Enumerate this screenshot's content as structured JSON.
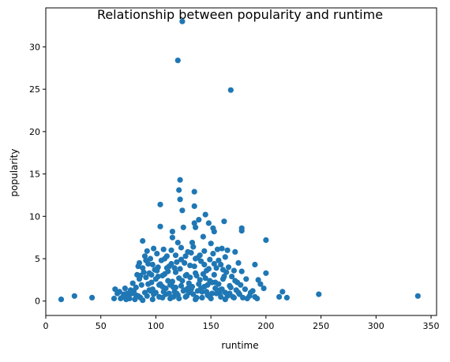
{
  "chart_data": {
    "type": "scatter",
    "title": "Relationship between popularity and runtime",
    "xlabel": "runtime",
    "ylabel": "popularity",
    "xlim": [
      0,
      355
    ],
    "ylim": [
      -1.7,
      34.6
    ],
    "xticks": [
      0,
      50,
      100,
      150,
      200,
      250,
      300,
      350
    ],
    "yticks": [
      0,
      5,
      10,
      15,
      20,
      25,
      30
    ],
    "grid": false,
    "legend": "none",
    "color": "#1f77b4",
    "series": [
      {
        "points": [
          [
            124,
            33.0
          ],
          [
            120,
            28.4
          ],
          [
            168,
            24.9
          ],
          [
            122,
            14.3
          ],
          [
            135,
            12.9
          ],
          [
            121,
            13.1
          ],
          [
            122,
            12.0
          ],
          [
            135,
            11.2
          ],
          [
            104,
            11.4
          ],
          [
            124,
            10.7
          ],
          [
            145,
            10.2
          ],
          [
            139,
            9.6
          ],
          [
            162,
            9.4
          ],
          [
            148,
            9.2
          ],
          [
            135,
            9.2
          ],
          [
            104,
            8.8
          ],
          [
            125,
            8.7
          ],
          [
            136,
            8.7
          ],
          [
            178,
            8.6
          ],
          [
            152,
            8.6
          ],
          [
            178,
            8.3
          ],
          [
            153,
            8.2
          ],
          [
            115,
            8.2
          ],
          [
            143,
            7.6
          ],
          [
            115,
            7.5
          ],
          [
            200,
            7.2
          ],
          [
            88,
            7.1
          ],
          [
            120,
            6.9
          ],
          [
            133,
            6.9
          ],
          [
            150,
            6.8
          ],
          [
            172,
            5.8
          ],
          [
            165,
            6.0
          ],
          [
            160,
            6.2
          ],
          [
            163,
            5.2
          ],
          [
            92,
            5.9
          ],
          [
            90,
            5.3
          ],
          [
            85,
            4.5
          ],
          [
            84,
            4.1
          ],
          [
            88,
            3.9
          ],
          [
            190,
            4.3
          ],
          [
            193,
            2.5
          ],
          [
            200,
            3.3
          ],
          [
            175,
            4.5
          ],
          [
            178,
            3.5
          ],
          [
            182,
            2.6
          ],
          [
            195,
            2.0
          ],
          [
            198,
            1.5
          ],
          [
            186,
            1.0
          ],
          [
            190,
            0.5
          ],
          [
            183,
            0.3
          ],
          [
            215,
            1.1
          ],
          [
            212,
            0.5
          ],
          [
            219,
            0.4
          ],
          [
            248,
            0.8
          ],
          [
            338,
            0.6
          ],
          [
            14,
            0.2
          ],
          [
            26,
            0.6
          ],
          [
            42,
            0.4
          ],
          [
            62,
            0.3
          ],
          [
            63,
            1.4
          ],
          [
            67,
            1.1
          ],
          [
            70,
            0.5
          ],
          [
            72,
            1.5
          ],
          [
            74,
            0.9
          ],
          [
            76,
            0.3
          ],
          [
            79,
            2.1
          ],
          [
            80,
            1.2
          ],
          [
            82,
            0.7
          ],
          [
            83,
            3.1
          ],
          [
            85,
            2.6
          ],
          [
            86,
            0.4
          ],
          [
            87,
            1.9
          ],
          [
            89,
            3.4
          ],
          [
            91,
            2.8
          ],
          [
            92,
            0.6
          ],
          [
            93,
            4.4
          ],
          [
            94,
            1.3
          ],
          [
            95,
            5.0
          ],
          [
            96,
            2.2
          ],
          [
            97,
            0.2
          ],
          [
            98,
            6.2
          ],
          [
            99,
            3.7
          ],
          [
            100,
            1.0
          ],
          [
            101,
            5.6
          ],
          [
            102,
            2.9
          ],
          [
            103,
            0.5
          ],
          [
            105,
            4.8
          ],
          [
            106,
            1.7
          ],
          [
            107,
            6.1
          ],
          [
            108,
            3.2
          ],
          [
            109,
            0.8
          ],
          [
            110,
            5.3
          ],
          [
            111,
            2.4
          ],
          [
            112,
            4.1
          ],
          [
            113,
            0.3
          ],
          [
            114,
            6.0
          ],
          [
            116,
            1.6
          ],
          [
            117,
            3.9
          ],
          [
            118,
            5.4
          ],
          [
            119,
            0.9
          ],
          [
            121,
            2.7
          ],
          [
            123,
            6.3
          ],
          [
            125,
            1.2
          ],
          [
            126,
            4.5
          ],
          [
            127,
            3.0
          ],
          [
            128,
            0.6
          ],
          [
            129,
            5.8
          ],
          [
            130,
            2.1
          ],
          [
            131,
            4.2
          ],
          [
            132,
            1.4
          ],
          [
            134,
            6.4
          ],
          [
            136,
            3.3
          ],
          [
            137,
            0.4
          ],
          [
            138,
            5.1
          ],
          [
            140,
            2.5
          ],
          [
            141,
            4.7
          ],
          [
            142,
            1.1
          ],
          [
            144,
            5.9
          ],
          [
            146,
            3.6
          ],
          [
            147,
            0.7
          ],
          [
            149,
            4.9
          ],
          [
            151,
            2.2
          ],
          [
            152,
            5.6
          ],
          [
            154,
            1.5
          ],
          [
            155,
            3.9
          ],
          [
            156,
            6.1
          ],
          [
            158,
            0.9
          ],
          [
            159,
            4.3
          ],
          [
            161,
            2.6
          ],
          [
            163,
            1.0
          ],
          [
            164,
            3.4
          ],
          [
            166,
            4.0
          ],
          [
            167,
            1.8
          ],
          [
            169,
            2.9
          ],
          [
            170,
            0.5
          ],
          [
            171,
            3.6
          ],
          [
            173,
            1.3
          ],
          [
            174,
            2.2
          ],
          [
            176,
            0.8
          ],
          [
            177,
            1.9
          ],
          [
            179,
            0.4
          ],
          [
            181,
            1.4
          ],
          [
            185,
            0.6
          ],
          [
            188,
            1.2
          ],
          [
            192,
            0.3
          ],
          [
            96,
            3.1
          ],
          [
            102,
            4.0
          ],
          [
            104,
            2.0
          ],
          [
            108,
            5.0
          ],
          [
            111,
            3.5
          ],
          [
            115,
            2.3
          ],
          [
            117,
            1.1
          ],
          [
            119,
            4.6
          ],
          [
            122,
            3.8
          ],
          [
            124,
            2.4
          ],
          [
            126,
            1.3
          ],
          [
            128,
            3.1
          ],
          [
            131,
            2.8
          ],
          [
            133,
            1.7
          ],
          [
            135,
            4.1
          ],
          [
            137,
            3.0
          ],
          [
            139,
            2.0
          ],
          [
            141,
            1.5
          ],
          [
            143,
            3.2
          ],
          [
            145,
            2.7
          ],
          [
            147,
            1.9
          ],
          [
            149,
            2.4
          ],
          [
            151,
            0.9
          ],
          [
            153,
            3.1
          ],
          [
            157,
            2.0
          ],
          [
            160,
            1.4
          ],
          [
            162,
            2.9
          ],
          [
            165,
            0.6
          ],
          [
            168,
            1.6
          ],
          [
            172,
            2.4
          ],
          [
            90,
            1.0
          ],
          [
            93,
            2.0
          ],
          [
            95,
            1.2
          ],
          [
            98,
            0.8
          ],
          [
            100,
            2.6
          ],
          [
            103,
            1.9
          ],
          [
            106,
            0.4
          ],
          [
            109,
            1.5
          ],
          [
            112,
            0.9
          ],
          [
            114,
            2.0
          ],
          [
            116,
            0.5
          ],
          [
            118,
            1.6
          ],
          [
            120,
            0.7
          ],
          [
            123,
            1.8
          ],
          [
            127,
            0.5
          ],
          [
            130,
            1.0
          ],
          [
            134,
            0.8
          ],
          [
            138,
            1.2
          ],
          [
            142,
            0.4
          ],
          [
            146,
            1.1
          ],
          [
            150,
            0.3
          ],
          [
            155,
            0.9
          ],
          [
            159,
            0.5
          ],
          [
            163,
            0.2
          ],
          [
            167,
            0.9
          ],
          [
            171,
            0.4
          ],
          [
            175,
            1.0
          ],
          [
            84,
            0.6
          ],
          [
            81,
            0.2
          ],
          [
            78,
            0.9
          ],
          [
            75,
            0.5
          ],
          [
            73,
            0.2
          ],
          [
            88,
            0.1
          ],
          [
            97,
            1.4
          ],
          [
            107,
            1.1
          ],
          [
            113,
            1.9
          ],
          [
            121,
            0.3
          ],
          [
            129,
            1.5
          ],
          [
            136,
            0.2
          ],
          [
            144,
            1.7
          ],
          [
            148,
            0.6
          ],
          [
            154,
            2.2
          ],
          [
            158,
            1.3
          ],
          [
            161,
            3.7
          ],
          [
            157,
            4.8
          ],
          [
            153,
            4.4
          ],
          [
            148,
            3.8
          ],
          [
            144,
            4.3
          ],
          [
            140,
            5.4
          ],
          [
            136,
            5.0
          ],
          [
            132,
            5.7
          ],
          [
            127,
            5.3
          ],
          [
            123,
            4.9
          ],
          [
            118,
            3.4
          ],
          [
            114,
            4.4
          ],
          [
            110,
            3.9
          ],
          [
            106,
            3.0
          ],
          [
            101,
            3.6
          ],
          [
            97,
            4.3
          ],
          [
            94,
            3.3
          ],
          [
            91,
            4.8
          ],
          [
            86,
            3.0
          ],
          [
            82,
            1.6
          ],
          [
            77,
            1.3
          ],
          [
            71,
            0.8
          ],
          [
            68,
            0.3
          ],
          [
            65,
            0.9
          ]
        ]
      }
    ]
  }
}
